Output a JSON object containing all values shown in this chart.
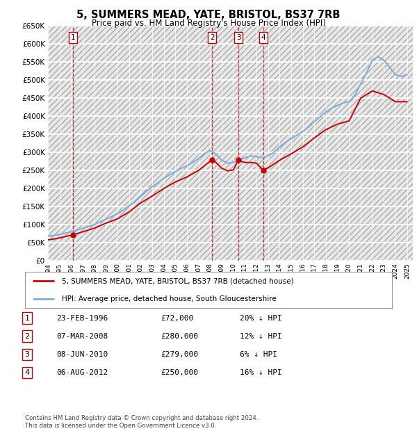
{
  "title": "5, SUMMERS MEAD, YATE, BRISTOL, BS37 7RB",
  "subtitle": "Price paid vs. HM Land Registry's House Price Index (HPI)",
  "ylabel_max": 650000,
  "ylabel_step": 50000,
  "background_color": "#ffffff",
  "grid_color": "#bbbbbb",
  "plot_bg_color": "#e8e8e8",
  "sale_dates": [
    1996.15,
    2008.18,
    2010.44,
    2012.59
  ],
  "sale_prices": [
    72000,
    280000,
    279000,
    250000
  ],
  "sale_labels": [
    "1",
    "2",
    "3",
    "4"
  ],
  "hpi_line_color": "#7aaddc",
  "sale_line_color": "#cc0000",
  "vline_color": "#cc0000",
  "legend_sale_label": "5, SUMMERS MEAD, YATE, BRISTOL, BS37 7RB (detached house)",
  "legend_hpi_label": "HPI: Average price, detached house, South Gloucestershire",
  "table_entries": [
    {
      "num": "1",
      "date": "23-FEB-1996",
      "price": "£72,000",
      "pct": "20% ↓ HPI"
    },
    {
      "num": "2",
      "date": "07-MAR-2008",
      "price": "£280,000",
      "pct": "12% ↓ HPI"
    },
    {
      "num": "3",
      "date": "08-JUN-2010",
      "price": "£279,000",
      "pct": "6% ↓ HPI"
    },
    {
      "num": "4",
      "date": "06-AUG-2012",
      "price": "£250,000",
      "pct": "16% ↓ HPI"
    }
  ],
  "footer": "Contains HM Land Registry data © Crown copyright and database right 2024.\nThis data is licensed under the Open Government Licence v3.0.",
  "hpi_x": [
    1994.0,
    1994.5,
    1995.0,
    1995.5,
    1996.0,
    1996.5,
    1997.0,
    1997.5,
    1998.0,
    1998.5,
    1999.0,
    1999.5,
    2000.0,
    2000.5,
    2001.0,
    2001.5,
    2002.0,
    2002.5,
    2003.0,
    2003.5,
    2004.0,
    2004.5,
    2005.0,
    2005.5,
    2006.0,
    2006.5,
    2007.0,
    2007.5,
    2008.0,
    2008.5,
    2009.0,
    2009.5,
    2010.0,
    2010.5,
    2011.0,
    2011.5,
    2012.0,
    2012.5,
    2013.0,
    2013.5,
    2014.0,
    2014.5,
    2015.0,
    2015.5,
    2016.0,
    2016.5,
    2017.0,
    2017.5,
    2018.0,
    2018.5,
    2019.0,
    2019.5,
    2020.0,
    2020.5,
    2021.0,
    2021.5,
    2022.0,
    2022.5,
    2023.0,
    2023.5,
    2024.0,
    2024.5,
    2025.0
  ],
  "hpi_y": [
    68000,
    70000,
    73000,
    76000,
    80000,
    85000,
    90000,
    95000,
    100000,
    108000,
    115000,
    122000,
    130000,
    140000,
    152000,
    163000,
    178000,
    192000,
    205000,
    216000,
    228000,
    238000,
    247000,
    255000,
    263000,
    272000,
    283000,
    296000,
    305000,
    295000,
    278000,
    270000,
    272000,
    278000,
    285000,
    290000,
    288000,
    285000,
    290000,
    300000,
    315000,
    328000,
    338000,
    348000,
    358000,
    370000,
    385000,
    398000,
    412000,
    422000,
    430000,
    437000,
    440000,
    458000,
    490000,
    520000,
    555000,
    565000,
    555000,
    535000,
    515000,
    510000,
    515000
  ],
  "red_x": [
    1994.0,
    1994.5,
    1995.0,
    1995.5,
    1996.15,
    1996.15,
    1997.0,
    1998.0,
    1999.0,
    2000.0,
    2001.0,
    2002.0,
    2003.0,
    2004.0,
    2005.0,
    2006.0,
    2007.0,
    2008.18,
    2008.18,
    2008.5,
    2009.0,
    2009.5,
    2010.0,
    2010.44,
    2010.44,
    2010.5,
    2011.0,
    2011.5,
    2012.0,
    2012.59,
    2012.59,
    2013.0,
    2014.0,
    2015.0,
    2016.0,
    2017.0,
    2018.0,
    2019.0,
    2020.0,
    2021.0,
    2022.0,
    2023.0,
    2024.0,
    2025.0
  ],
  "red_y": [
    58000,
    60000,
    63000,
    67000,
    72000,
    72000,
    80000,
    90000,
    104000,
    116000,
    135000,
    160000,
    179000,
    200000,
    218000,
    232000,
    250000,
    280000,
    280000,
    272000,
    256000,
    249000,
    251000,
    279000,
    279000,
    277000,
    272000,
    272000,
    270000,
    250000,
    250000,
    257000,
    278000,
    296000,
    315000,
    340000,
    363000,
    378000,
    387000,
    450000,
    470000,
    460000,
    440000,
    440000
  ],
  "xmin": 1994,
  "xmax": 2025.5,
  "xtick_years": [
    1994,
    1995,
    1996,
    1997,
    1998,
    1999,
    2000,
    2001,
    2002,
    2003,
    2004,
    2005,
    2006,
    2007,
    2008,
    2009,
    2010,
    2011,
    2012,
    2013,
    2014,
    2015,
    2016,
    2017,
    2018,
    2019,
    2020,
    2021,
    2022,
    2023,
    2024,
    2025
  ]
}
